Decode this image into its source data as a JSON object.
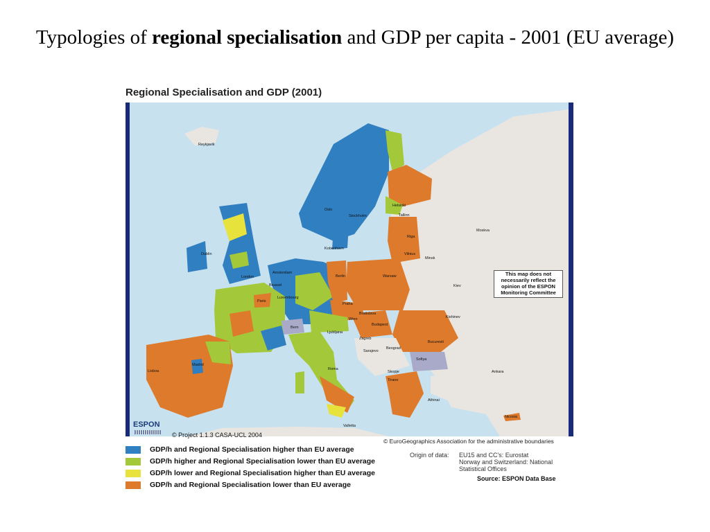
{
  "slide": {
    "title_prefix": "Typologies of ",
    "title_bold": "regional specialisation",
    "title_suffix": " and GDP per capita - 2001 (EU average)"
  },
  "map": {
    "title": "Regional Specialisation and GDP (2001)",
    "project_credit": "© Project 1.1.3 CASA-UCL 2004",
    "logo_text": "ESPON",
    "copyright": "© EuroGeographics Association for the administrative boundaries",
    "disclaimer": "This map does not necessarily reflect the opinion of the ESPON Monitoring Committee",
    "origin_label": "Origin of data:",
    "origin_line1": "EU15 and CC's: Eurostat",
    "origin_line2": "Norway and Switzerland: National",
    "origin_line3": "Statistical Offices",
    "source": "Source: ESPON Data Base",
    "colors": {
      "sea": "#c8e1ef",
      "frame_border": "#1a2a7a",
      "non_data_land": "#e9e6e2",
      "no_data": "#a9aac9",
      "blue": "#2f7fc1",
      "lime": "#a3c93a",
      "yellow": "#e8e23c",
      "orange": "#dd7a2c"
    },
    "cities": {
      "reykjavik": "Reykjavik",
      "oslo": "Oslo",
      "stockholm": "Stockholm",
      "helsinki": "Helsinki",
      "tallinn": "Tallinn",
      "riga": "Riga",
      "vilnius": "Vilnius",
      "minsk": "Minsk",
      "moskva": "Moskva",
      "kobenhavn": "Kobenhavn",
      "dublin": "Dublin",
      "london": "London",
      "amsterdam": "Amsterdam",
      "brussel": "Brussel",
      "luxembourg": "Luxembourg",
      "paris": "Paris",
      "berlin": "Berlin",
      "warsaw": "Warsaw",
      "praha": "Praha",
      "bratislava": "Bratislava",
      "wien": "Wien",
      "budapest": "Budapest",
      "kiev": "Kiev",
      "kishinev": "Kishinev",
      "bern": "Bern",
      "ljubljana": "Ljubljana",
      "zagreb": "Zagreb",
      "beograd": "Beograd",
      "bucuresti": "Bucuresti",
      "sarajevo": "Sarajevo",
      "sofiya": "Sofiya",
      "skopje": "Skopje",
      "tirane": "Tirane",
      "ankara": "Ankara",
      "madrid": "Madrid",
      "lisboa": "Lisboa",
      "roma": "Roma",
      "athinai": "Athinai",
      "valletta": "Valletta",
      "nicosia": "Nicosia"
    }
  },
  "legend": [
    {
      "label": "GDP/h and Regional Specialisation higher than EU average",
      "color": "#2f7fc1"
    },
    {
      "label": "GDP/h higher and Regional Specialisation lower than EU average",
      "color": "#a3c93a"
    },
    {
      "label": "GDP/h lower and Regional Specialisation higher than EU average",
      "color": "#e8e23c"
    },
    {
      "label": "GDP/h and Regional Specialisation lower than EU average",
      "color": "#dd7a2c"
    }
  ]
}
